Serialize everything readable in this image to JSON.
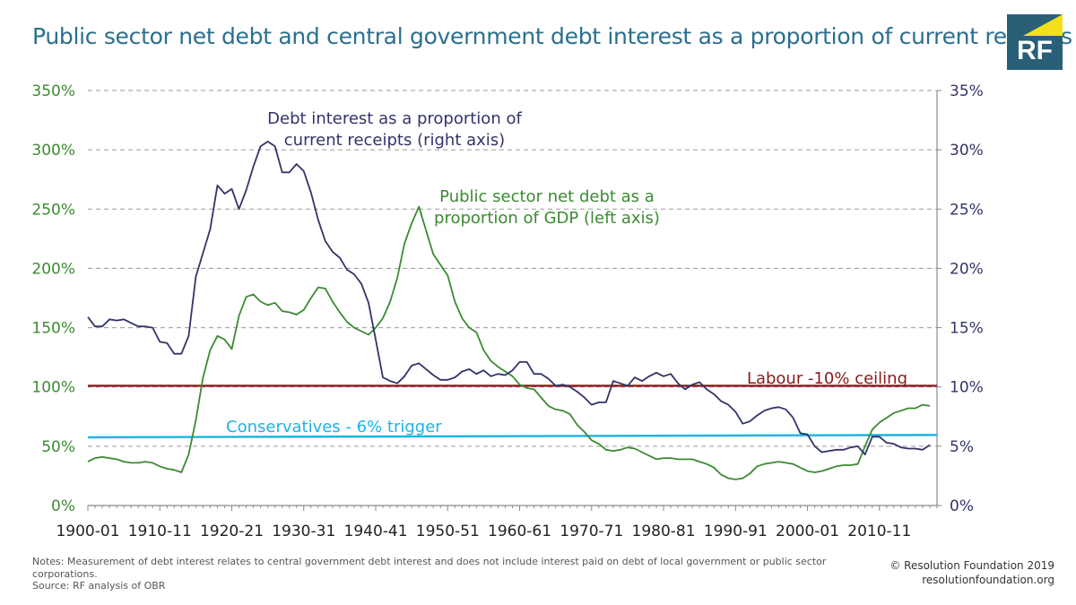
{
  "title": "Public sector net debt and central government debt interest as a proportion of current receipts",
  "logo": {
    "text": "RF",
    "colors": {
      "background": "#2a5f78",
      "accent": "#f2e01a"
    }
  },
  "notes": "Notes: Measurement of debt interest relates to central government debt interest and does not include interest paid on debt of local government or public sector corporations.",
  "source": "Source: RF analysis of OBR",
  "copyright": "© Resolution Foundation 2019",
  "website": "resolutionfoundation.org",
  "colors": {
    "title": "#2a6f8f",
    "left_axis": "#3c8a32",
    "right_axis": "#32346a",
    "grid": "#9a9a9a"
  },
  "chart_data": {
    "type": "line",
    "title": "Public sector net debt and central government debt interest as a proportion of current receipts",
    "x_start": 1900,
    "x_end": 2018,
    "x_tick_years": [
      1900,
      1910,
      1920,
      1930,
      1940,
      1950,
      1960,
      1970,
      1980,
      1990,
      2000,
      2010
    ],
    "x_tick_labels": [
      "1900-01",
      "1910-11",
      "1920-21",
      "1930-31",
      "1940-41",
      "1950-51",
      "1960-61",
      "1970-71",
      "1980-81",
      "1990-91",
      "2000-01",
      "2010-11"
    ],
    "y_left": {
      "range": [
        0,
        350
      ],
      "ticks": [
        0,
        50,
        100,
        150,
        200,
        250,
        300,
        350
      ],
      "tick_labels": [
        "0%",
        "50%",
        "100%",
        "150%",
        "200%",
        "250%",
        "300%",
        "350%"
      ]
    },
    "y_right": {
      "range": [
        0,
        35
      ],
      "ticks": [
        0,
        5,
        10,
        15,
        20,
        25,
        30,
        35
      ],
      "tick_labels": [
        "0%",
        "5%",
        "10%",
        "15%",
        "20%",
        "25%",
        "30%",
        "35%"
      ]
    },
    "grid": true,
    "series": [
      {
        "name": "Debt interest as a proportion of current receipts (right axis)",
        "axis": "right",
        "color": "#32346a",
        "label_lines": [
          "Debt interest as a proportion of",
          "current receipts (right axis)"
        ],
        "points": [
          [
            1900,
            15.9
          ],
          [
            1901,
            15.1
          ],
          [
            1902,
            15.1
          ],
          [
            1903,
            15.7
          ],
          [
            1904,
            15.6
          ],
          [
            1905,
            15.7
          ],
          [
            1906,
            15.4
          ],
          [
            1907,
            15.1
          ],
          [
            1908,
            15.1
          ],
          [
            1909,
            15.0
          ],
          [
            1910,
            13.8
          ],
          [
            1911,
            13.7
          ],
          [
            1912,
            12.8
          ],
          [
            1913,
            12.8
          ],
          [
            1914,
            14.3
          ],
          [
            1915,
            19.3
          ],
          [
            1916,
            21.3
          ],
          [
            1917,
            23.3
          ],
          [
            1918,
            27.0
          ],
          [
            1919,
            26.3
          ],
          [
            1920,
            26.7
          ],
          [
            1921,
            25.0
          ],
          [
            1922,
            26.6
          ],
          [
            1923,
            28.6
          ],
          [
            1924,
            30.3
          ],
          [
            1925,
            30.7
          ],
          [
            1926,
            30.3
          ],
          [
            1927,
            28.1
          ],
          [
            1928,
            28.1
          ],
          [
            1929,
            28.8
          ],
          [
            1930,
            28.2
          ],
          [
            1931,
            26.4
          ],
          [
            1932,
            24.1
          ],
          [
            1933,
            22.3
          ],
          [
            1934,
            21.4
          ],
          [
            1935,
            20.9
          ],
          [
            1936,
            19.9
          ],
          [
            1937,
            19.5
          ],
          [
            1938,
            18.7
          ],
          [
            1939,
            17.1
          ],
          [
            1940,
            14.0
          ],
          [
            1941,
            10.8
          ],
          [
            1942,
            10.5
          ],
          [
            1943,
            10.3
          ],
          [
            1944,
            10.9
          ],
          [
            1945,
            11.8
          ],
          [
            1946,
            12.0
          ],
          [
            1947,
            11.5
          ],
          [
            1948,
            11.0
          ],
          [
            1949,
            10.6
          ],
          [
            1950,
            10.6
          ],
          [
            1951,
            10.8
          ],
          [
            1952,
            11.3
          ],
          [
            1953,
            11.5
          ],
          [
            1954,
            11.1
          ],
          [
            1955,
            11.4
          ],
          [
            1956,
            10.9
          ],
          [
            1957,
            11.1
          ],
          [
            1958,
            11.0
          ],
          [
            1959,
            11.4
          ],
          [
            1960,
            12.1
          ],
          [
            1961,
            12.1
          ],
          [
            1962,
            11.1
          ],
          [
            1963,
            11.1
          ],
          [
            1964,
            10.7
          ],
          [
            1965,
            10.1
          ],
          [
            1966,
            10.2
          ],
          [
            1967,
            10.0
          ],
          [
            1968,
            9.6
          ],
          [
            1969,
            9.1
          ],
          [
            1970,
            8.5
          ],
          [
            1971,
            8.7
          ],
          [
            1972,
            8.7
          ],
          [
            1973,
            10.5
          ],
          [
            1974,
            10.3
          ],
          [
            1975,
            10.1
          ],
          [
            1976,
            10.8
          ],
          [
            1977,
            10.5
          ],
          [
            1978,
            10.9
          ],
          [
            1979,
            11.2
          ],
          [
            1980,
            10.9
          ],
          [
            1981,
            11.1
          ],
          [
            1982,
            10.3
          ],
          [
            1983,
            9.8
          ],
          [
            1984,
            10.2
          ],
          [
            1985,
            10.4
          ],
          [
            1986,
            9.8
          ],
          [
            1987,
            9.4
          ],
          [
            1988,
            8.8
          ],
          [
            1989,
            8.5
          ],
          [
            1990,
            7.9
          ],
          [
            1991,
            6.9
          ],
          [
            1992,
            7.1
          ],
          [
            1993,
            7.6
          ],
          [
            1994,
            8.0
          ],
          [
            1995,
            8.2
          ],
          [
            1996,
            8.3
          ],
          [
            1997,
            8.1
          ],
          [
            1998,
            7.4
          ],
          [
            1999,
            6.1
          ],
          [
            2000,
            6.0
          ],
          [
            2001,
            5.0
          ],
          [
            2002,
            4.5
          ],
          [
            2003,
            4.6
          ],
          [
            2004,
            4.7
          ],
          [
            2005,
            4.7
          ],
          [
            2006,
            4.9
          ],
          [
            2007,
            5.0
          ],
          [
            2008,
            4.3
          ],
          [
            2009,
            5.8
          ],
          [
            2010,
            5.8
          ],
          [
            2011,
            5.3
          ],
          [
            2012,
            5.2
          ],
          [
            2013,
            4.9
          ],
          [
            2014,
            4.8
          ],
          [
            2015,
            4.8
          ],
          [
            2016,
            4.7
          ],
          [
            2017,
            5.1
          ]
        ]
      },
      {
        "name": "Public sector net debt as a proportion of GDP (left axis)",
        "axis": "left",
        "color": "#3c8a32",
        "label_lines": [
          "Public sector net debt as a",
          "proportion of GDP (left axis)"
        ],
        "points": [
          [
            1900,
            37
          ],
          [
            1901,
            40
          ],
          [
            1902,
            41
          ],
          [
            1903,
            40
          ],
          [
            1904,
            39
          ],
          [
            1905,
            37
          ],
          [
            1906,
            36
          ],
          [
            1907,
            36
          ],
          [
            1908,
            37
          ],
          [
            1909,
            36
          ],
          [
            1910,
            33
          ],
          [
            1911,
            31
          ],
          [
            1912,
            30
          ],
          [
            1913,
            28
          ],
          [
            1914,
            43
          ],
          [
            1915,
            72
          ],
          [
            1916,
            108
          ],
          [
            1917,
            131
          ],
          [
            1918,
            143
          ],
          [
            1919,
            140
          ],
          [
            1920,
            132
          ],
          [
            1921,
            160
          ],
          [
            1922,
            176
          ],
          [
            1923,
            178
          ],
          [
            1924,
            172
          ],
          [
            1925,
            169
          ],
          [
            1926,
            171
          ],
          [
            1927,
            164
          ],
          [
            1928,
            163
          ],
          [
            1929,
            161
          ],
          [
            1930,
            165
          ],
          [
            1931,
            175
          ],
          [
            1932,
            184
          ],
          [
            1933,
            183
          ],
          [
            1934,
            172
          ],
          [
            1935,
            163
          ],
          [
            1936,
            155
          ],
          [
            1937,
            150
          ],
          [
            1938,
            147
          ],
          [
            1939,
            144
          ],
          [
            1940,
            150
          ],
          [
            1941,
            158
          ],
          [
            1942,
            172
          ],
          [
            1943,
            192
          ],
          [
            1944,
            221
          ],
          [
            1945,
            238
          ],
          [
            1946,
            252
          ],
          [
            1947,
            232
          ],
          [
            1948,
            212
          ],
          [
            1949,
            203
          ],
          [
            1950,
            194
          ],
          [
            1951,
            172
          ],
          [
            1952,
            158
          ],
          [
            1953,
            150
          ],
          [
            1954,
            146
          ],
          [
            1955,
            131
          ],
          [
            1956,
            122
          ],
          [
            1957,
            117
          ],
          [
            1958,
            113
          ],
          [
            1959,
            109
          ],
          [
            1960,
            102
          ],
          [
            1961,
            99
          ],
          [
            1962,
            98
          ],
          [
            1963,
            91
          ],
          [
            1964,
            84
          ],
          [
            1965,
            81
          ],
          [
            1966,
            80
          ],
          [
            1967,
            77
          ],
          [
            1968,
            68
          ],
          [
            1969,
            62
          ],
          [
            1970,
            55
          ],
          [
            1971,
            52
          ],
          [
            1972,
            47
          ],
          [
            1973,
            46
          ],
          [
            1974,
            47
          ],
          [
            1975,
            49
          ],
          [
            1976,
            48
          ],
          [
            1977,
            45
          ],
          [
            1978,
            42
          ],
          [
            1979,
            39
          ],
          [
            1980,
            40
          ],
          [
            1981,
            40
          ],
          [
            1982,
            39
          ],
          [
            1983,
            39
          ],
          [
            1984,
            39
          ],
          [
            1985,
            37
          ],
          [
            1986,
            35
          ],
          [
            1987,
            32
          ],
          [
            1988,
            26
          ],
          [
            1989,
            23
          ],
          [
            1990,
            22
          ],
          [
            1991,
            23
          ],
          [
            1992,
            27
          ],
          [
            1993,
            33
          ],
          [
            1994,
            35
          ],
          [
            1995,
            36
          ],
          [
            1996,
            37
          ],
          [
            1997,
            36
          ],
          [
            1998,
            35
          ],
          [
            1999,
            32
          ],
          [
            2000,
            29
          ],
          [
            2001,
            28
          ],
          [
            2002,
            29
          ],
          [
            2003,
            31
          ],
          [
            2004,
            33
          ],
          [
            2005,
            34
          ],
          [
            2006,
            34
          ],
          [
            2007,
            35
          ],
          [
            2008,
            50
          ],
          [
            2009,
            64
          ],
          [
            2010,
            70
          ],
          [
            2011,
            74
          ],
          [
            2012,
            78
          ],
          [
            2013,
            80
          ],
          [
            2014,
            82
          ],
          [
            2015,
            82
          ],
          [
            2016,
            85
          ],
          [
            2017,
            84
          ]
        ]
      },
      {
        "name": "Labour -10% ceiling",
        "axis": "right",
        "color": "#8b1a1a",
        "label_lines": [
          "Labour -10% ceiling"
        ],
        "points": [
          [
            1900,
            10.1
          ],
          [
            2018,
            10.1
          ]
        ]
      },
      {
        "name": "Conservatives - 6% trigger",
        "axis": "right",
        "color": "#1ab3e6",
        "label_lines": [
          "Conservatives - 6% trigger"
        ],
        "points": [
          [
            1900,
            5.75
          ],
          [
            2018,
            5.95
          ]
        ]
      }
    ]
  }
}
